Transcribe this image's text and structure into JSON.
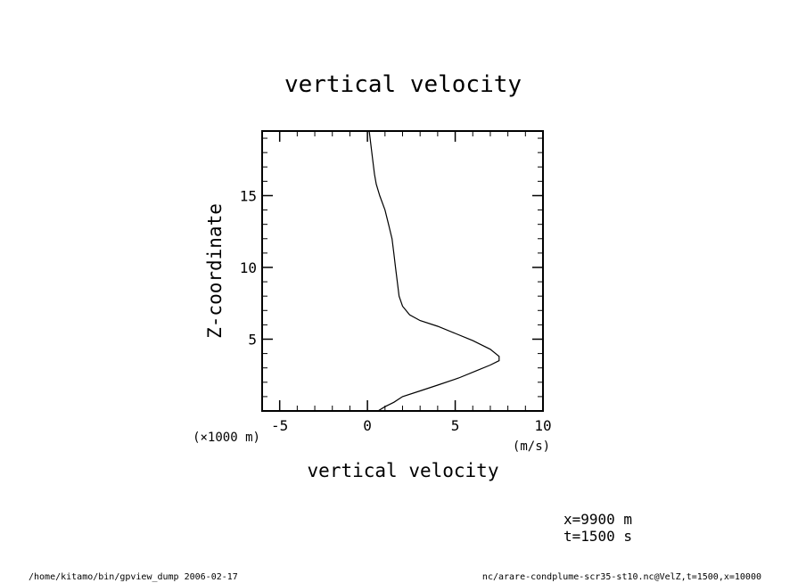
{
  "chart_data": {
    "type": "line",
    "title": "vertical velocity",
    "xlabel": "vertical velocity",
    "x_units": "(m/s)",
    "ylabel": "Z-coordinate",
    "y_units": "(×1000 m)",
    "xlim": [
      -6,
      10
    ],
    "ylim": [
      0,
      19.5
    ],
    "x_ticks": [
      -5,
      0,
      5,
      10
    ],
    "x_tick_labels": [
      "-5",
      "0",
      "5",
      "10"
    ],
    "y_ticks": [
      5,
      10,
      15
    ],
    "y_tick_labels": [
      "5",
      "10",
      "15"
    ],
    "grid": false,
    "series": [
      {
        "x": [
          0.6,
          1.0,
          1.5,
          2.0,
          3.0,
          4.0,
          5.2,
          6.2,
          7.0,
          7.5,
          7.5,
          7.0,
          6.0,
          5.0,
          4.0,
          3.0,
          2.4,
          2.0,
          1.8,
          1.7,
          1.6,
          1.5,
          1.4,
          1.2,
          1.0,
          0.7,
          0.5,
          0.4,
          0.3,
          0.1
        ],
        "y": [
          0.0,
          0.3,
          0.6,
          1.0,
          1.4,
          1.8,
          2.3,
          2.8,
          3.2,
          3.5,
          3.8,
          4.3,
          4.9,
          5.4,
          5.9,
          6.3,
          6.7,
          7.3,
          8.0,
          9.0,
          10.0,
          11.0,
          12.0,
          13.0,
          14.0,
          15.0,
          15.8,
          16.5,
          17.5,
          19.5
        ]
      }
    ]
  },
  "annotations": {
    "x_info": "x=9900  m",
    "t_info": "t=1500  s"
  },
  "footer": {
    "left": "/home/kitamo/bin/gpview_dump  2006-02-17",
    "right": "nc/arare-condplume-scr35-st10.nc@VelZ,t=1500,x=10000"
  }
}
